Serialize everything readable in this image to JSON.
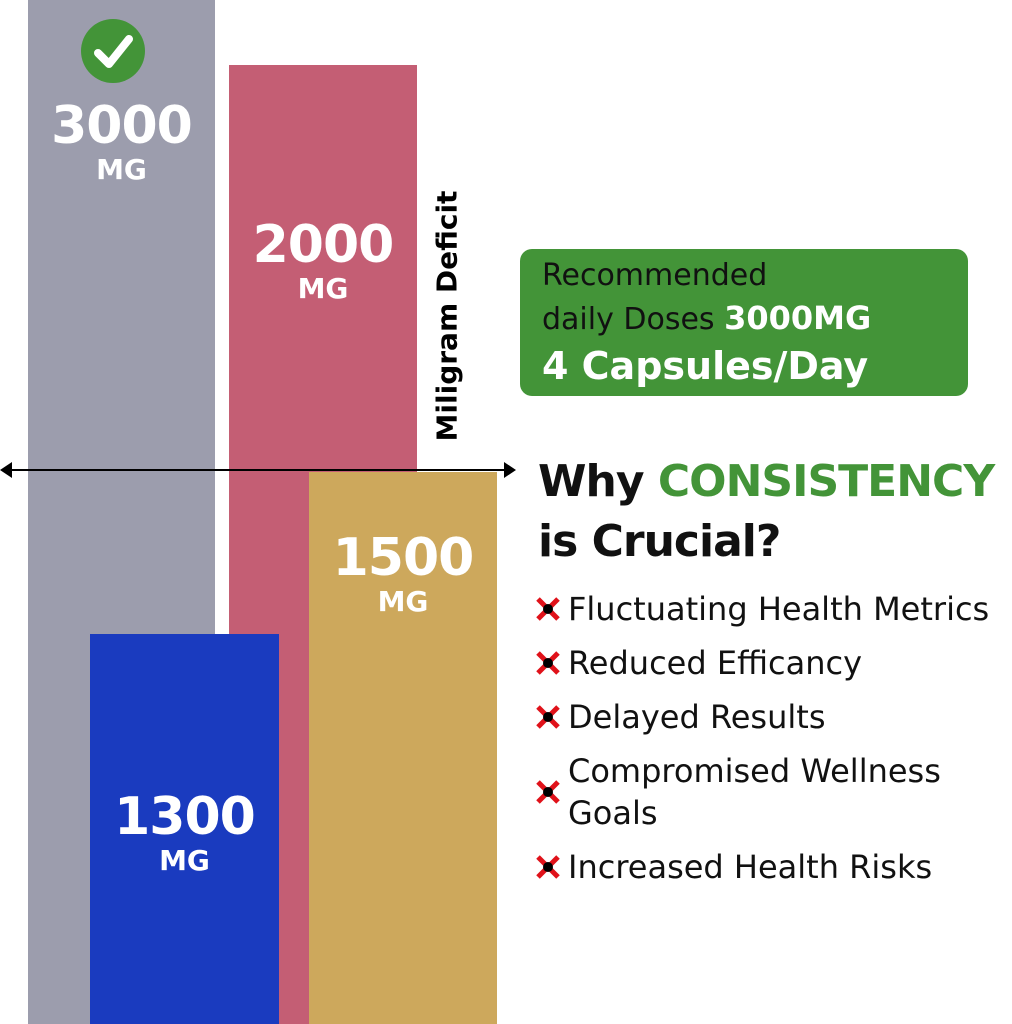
{
  "chart_data": {
    "type": "bar",
    "categories": [
      "3000 MG",
      "2000 MG",
      "1500 MG",
      "1300 MG"
    ],
    "values": [
      3000,
      2000,
      1500,
      1300
    ],
    "unit": "MG",
    "colors": [
      "#9c9dad",
      "#c45e74",
      "#cda85c",
      "#1a3bbf"
    ],
    "axis_label": "Miligram Deficit",
    "bars": [
      {
        "value": "3000",
        "unit": "MG",
        "icon": "check-icon"
      },
      {
        "value": "2000",
        "unit": "MG"
      },
      {
        "value": "1500",
        "unit": "MG"
      },
      {
        "value": "1300",
        "unit": "MG"
      }
    ]
  },
  "recommend": {
    "line1": "Recommended",
    "line2": "daily Doses",
    "dose": "3000MG",
    "line3": "4 Capsules/Day",
    "color": "#439438"
  },
  "heading": {
    "prefix": "Why",
    "accent": "CONSISTENCY",
    "suffix": "is Crucial?"
  },
  "list": [
    "Fluctuating Health Metrics",
    "Reduced Efficancy",
    "Delayed Results",
    "Compromised Wellness Goals",
    "Increased Health Risks"
  ]
}
